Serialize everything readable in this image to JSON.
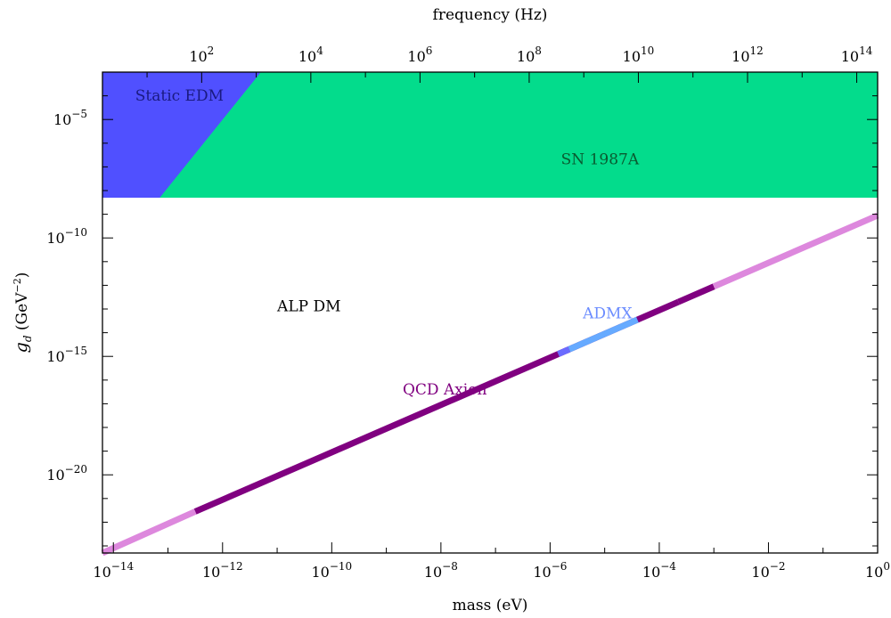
{
  "chart_data": {
    "type": "area",
    "x_axis": {
      "label": "mass (eV)",
      "scale": "log",
      "range_log10": [
        -14.2,
        0
      ],
      "major_ticks": [
        {
          "exp": -14,
          "label_base": "10",
          "label_exp": "−14"
        },
        {
          "exp": -12,
          "label_base": "10",
          "label_exp": "−12"
        },
        {
          "exp": -10,
          "label_base": "10",
          "label_exp": "−10"
        },
        {
          "exp": -8,
          "label_base": "10",
          "label_exp": "−8"
        },
        {
          "exp": -6,
          "label_base": "10",
          "label_exp": "−6"
        },
        {
          "exp": -4,
          "label_base": "10",
          "label_exp": "−4"
        },
        {
          "exp": -2,
          "label_base": "10",
          "label_exp": "−2"
        },
        {
          "exp": 0,
          "label_base": "10",
          "label_exp": "0"
        }
      ]
    },
    "top_axis": {
      "label": "frequency (Hz)",
      "scale": "log",
      "major_ticks": [
        {
          "exp": 2,
          "label_base": "10",
          "label_exp": "2"
        },
        {
          "exp": 4,
          "label_base": "10",
          "label_exp": "4"
        },
        {
          "exp": 6,
          "label_base": "10",
          "label_exp": "6"
        },
        {
          "exp": 8,
          "label_base": "10",
          "label_exp": "8"
        },
        {
          "exp": 10,
          "label_base": "10",
          "label_exp": "10"
        },
        {
          "exp": 12,
          "label_base": "10",
          "label_exp": "12"
        },
        {
          "exp": 14,
          "label_base": "10",
          "label_exp": "14"
        }
      ]
    },
    "y_axis": {
      "label_symbol": "g",
      "label_subscript": "d",
      "label_unit_open": " (GeV",
      "label_unit_exp": "−2",
      "label_unit_close": ")",
      "scale": "log",
      "range_log10": [
        -23.3,
        -3
      ],
      "major_ticks": [
        {
          "exp": -5,
          "label_base": "10",
          "label_exp": "−5"
        },
        {
          "exp": -10,
          "label_base": "10",
          "label_exp": "−10"
        },
        {
          "exp": -15,
          "label_base": "10",
          "label_exp": "−15"
        },
        {
          "exp": -20,
          "label_base": "10",
          "label_exp": "−20"
        }
      ]
    },
    "regions": [
      {
        "name": "SN 1987A",
        "color": "#03dc8c",
        "polygon_log10": [
          [
            -14.2,
            -8.3
          ],
          [
            -14.2,
            -3
          ],
          [
            0,
            -3
          ],
          [
            0,
            -8.3
          ]
        ]
      },
      {
        "name": "Static EDM",
        "color": "#5050ff",
        "polygon_log10": [
          [
            -14.2,
            -8.9
          ],
          [
            -14.2,
            -3
          ],
          [
            -11.3,
            -3
          ],
          [
            -13.15,
            -8.3
          ],
          [
            -14.2,
            -8.3
          ]
        ]
      }
    ],
    "lines": [
      {
        "name": "QCD Axion",
        "segments": [
          {
            "from_log10": [
              -14.2,
              -23.3
            ],
            "to_log10": [
              -12.5,
              -21.55
            ],
            "color": "#dd88dd"
          },
          {
            "from_log10": [
              -12.5,
              -21.55
            ],
            "to_log10": [
              -5.85,
              -14.9
            ],
            "color": "#800080"
          },
          {
            "from_log10": [
              -5.85,
              -14.9
            ],
            "to_log10": [
              -3.65,
              -12.7
            ],
            "color": "#800080"
          },
          {
            "from_log10": [
              -3.65,
              -12.7
            ],
            "to_log10": [
              -3.0,
              -12.05
            ],
            "color": "#800080"
          },
          {
            "from_log10": [
              -3.0,
              -12.05
            ],
            "to_log10": [
              0,
              -9.05
            ],
            "color": "#dd88dd"
          }
        ]
      },
      {
        "name": "ADMX",
        "segments": [
          {
            "from_log10": [
              -5.85,
              -14.9
            ],
            "to_log10": [
              -5.65,
              -14.7
            ],
            "color": "#6b6bff"
          },
          {
            "from_log10": [
              -5.65,
              -14.7
            ],
            "to_log10": [
              -4.4,
              -13.45
            ],
            "color": "#66aaff"
          }
        ]
      }
    ],
    "annotations": [
      {
        "text": "Static EDM",
        "x_log10": -13.6,
        "y_log10": -4.2,
        "color": "#1a1a80"
      },
      {
        "text": "SN 1987A",
        "x_log10": -5.8,
        "y_log10": -6.9,
        "color": "#0a5a30"
      },
      {
        "text": "ALP DM",
        "x_log10": -11.0,
        "y_log10": -13.1,
        "color": "#000000"
      },
      {
        "text": "QCD Axion",
        "x_log10": -8.7,
        "y_log10": -16.6,
        "color": "#800080"
      },
      {
        "text": "ADMX",
        "x_log10": -5.4,
        "y_log10": -13.4,
        "color": "#6b8cff"
      }
    ],
    "grid": false,
    "legend": "none"
  }
}
